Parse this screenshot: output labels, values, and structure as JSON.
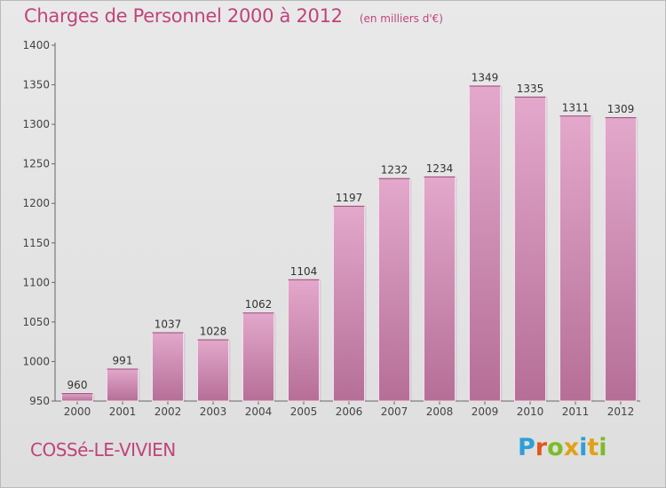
{
  "header": {
    "title": "Charges de Personnel 2000 à 2012",
    "subtitle": "(en milliers d'€)"
  },
  "footer": {
    "city": "COSSé-LE-VIVIEN",
    "logo_text": "Proxiti"
  },
  "colors": {
    "accent": "#c0447a",
    "bar_top": "#e3a8cb",
    "bar_bottom": "#b56f97"
  },
  "chart_data": {
    "type": "bar",
    "categories": [
      "2000",
      "2001",
      "2002",
      "2003",
      "2004",
      "2005",
      "2006",
      "2007",
      "2008",
      "2009",
      "2010",
      "2011",
      "2012"
    ],
    "values": [
      960,
      991,
      1037,
      1028,
      1062,
      1104,
      1197,
      1232,
      1234,
      1349,
      1335,
      1311,
      1309
    ],
    "title": "Charges de Personnel 2000 à 2012",
    "subtitle": "(en milliers d'€)",
    "ylim": [
      950,
      1400
    ],
    "yticks": [
      950,
      1000,
      1050,
      1100,
      1150,
      1200,
      1250,
      1300,
      1350,
      1400
    ],
    "grid": false,
    "data_labels": true
  }
}
